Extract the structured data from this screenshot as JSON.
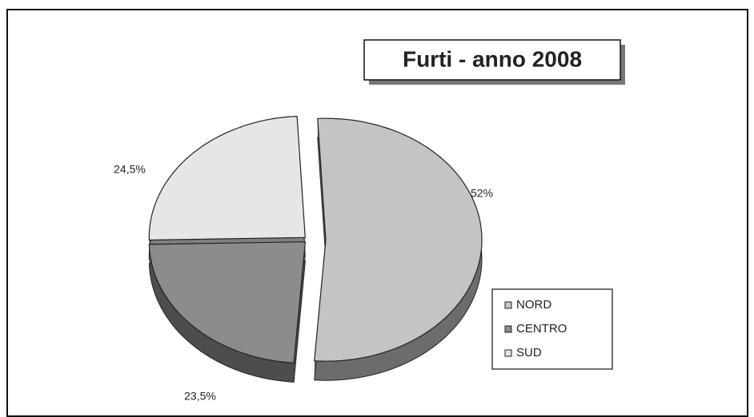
{
  "chart_data": {
    "type": "pie",
    "title": "Furti - anno 2008",
    "categories": [
      "NORD",
      "CENTRO",
      "SUD"
    ],
    "values": [
      52,
      23.5,
      24.5
    ],
    "value_labels": [
      "52%",
      "23,5%",
      "24,5%"
    ],
    "colors": [
      "#c4c4c4",
      "#8c8c8c",
      "#e6e6e6"
    ],
    "legend": "right"
  }
}
